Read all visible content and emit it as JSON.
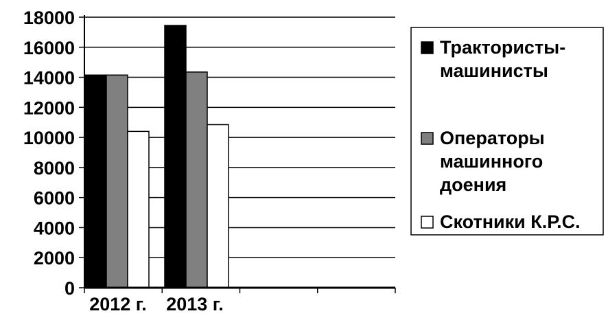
{
  "chart_data": {
    "type": "bar",
    "categories": [
      "2012 г.",
      "2013 г."
    ],
    "series": [
      {
        "name": "Трактористы-машинисты",
        "values": [
          14150,
          17450
        ],
        "color": "#000000",
        "legend_lines": [
          "Трактористы-",
          "машинисты"
        ]
      },
      {
        "name": "Операторы машинного доения",
        "values": [
          14150,
          14350
        ],
        "color": "#808080",
        "legend_lines": [
          "Операторы",
          "машинного",
          "доения"
        ]
      },
      {
        "name": "Скотники К.Р.С.",
        "values": [
          10400,
          10850
        ],
        "color": "#ffffff",
        "legend_lines": [
          "Скотники К.Р.С."
        ]
      }
    ],
    "yticks": [
      "0",
      "2000",
      "4000",
      "6000",
      "8000",
      "10000",
      "12000",
      "14000",
      "16000",
      "18000"
    ],
    "ylim": [
      0,
      18000
    ],
    "title": "",
    "xlabel": "",
    "ylabel": "",
    "grid": true,
    "legend_position": "right"
  }
}
